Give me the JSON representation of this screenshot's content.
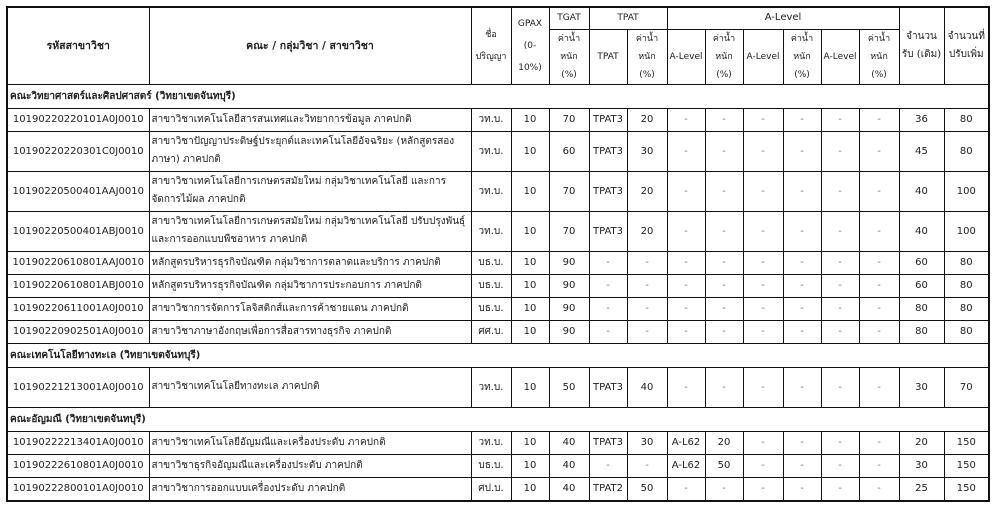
{
  "header": {
    "code": "รหัสสาขาวิชา",
    "program": "คณะ / กลุ่มวิชา / สาขาวิชา",
    "degree": "ชื่อ ปริญญา",
    "gpax": "GPAX (0-10%)",
    "tgat": "TGAT",
    "tpat": "TPAT",
    "alevel": "A-Level",
    "weight": "ค่าน้ำหนัก (%)",
    "tpat_sub": "TPAT",
    "alevel_sub": "A-Level",
    "seats_orig": "จำนวน รับ (เดิม)",
    "seats_added": "จำนวนที่ ปรับเพิ่ม"
  },
  "groups": [
    {
      "faculty": "คณะวิทยาศาสตร์และศิลปศาสตร์  (วิทยาเขตจันทบุรี)",
      "rows": [
        {
          "code": "10190220220101A0J0010",
          "name": "สาขาวิชาเทคโนโลยีสารสนเทศและวิทยาการข้อมูล ภาคปกติ",
          "degree": "วท.บ.",
          "gpax": "10",
          "tgat": "70",
          "tpat": "TPAT3",
          "tpat_w": "20",
          "a1": "-",
          "a1w": "-",
          "a2": "-",
          "a2w": "-",
          "a3": "-",
          "a3w": "-",
          "orig": "36",
          "added": "80"
        },
        {
          "code": "10190220220301C0J0010",
          "name": "สาขาวิชาปัญญาประดิษฐ์ประยุกต์และเทคโนโลยีอัจฉริยะ (หลักสูตรสองภาษา) ภาคปกติ",
          "degree": "วท.บ.",
          "gpax": "10",
          "tgat": "60",
          "tpat": "TPAT3",
          "tpat_w": "30",
          "a1": "-",
          "a1w": "-",
          "a2": "-",
          "a2w": "-",
          "a3": "-",
          "a3w": "-",
          "orig": "45",
          "added": "80"
        },
        {
          "code": "10190220500401AAJ0010",
          "name": "สาขาวิชาเทคโนโลยีการเกษตรสมัยใหม่ กลุ่มวิชาเทคโนโลยี และการจัดการไม้ผล ภาคปกติ",
          "degree": "วท.บ.",
          "gpax": "10",
          "tgat": "70",
          "tpat": "TPAT3",
          "tpat_w": "20",
          "a1": "-",
          "a1w": "-",
          "a2": "-",
          "a2w": "-",
          "a3": "-",
          "a3w": "-",
          "orig": "40",
          "added": "100"
        },
        {
          "code": "10190220500401ABJ0010",
          "name": "สาขาวิชาเทคโนโลยีการเกษตรสมัยใหม่ กลุ่มวิชาเทคโนโลยี ปรับปรุงพันธุ์และการออกแบบพืชอาหาร ภาคปกติ",
          "degree": "วท.บ.",
          "gpax": "10",
          "tgat": "70",
          "tpat": "TPAT3",
          "tpat_w": "20",
          "a1": "-",
          "a1w": "-",
          "a2": "-",
          "a2w": "-",
          "a3": "-",
          "a3w": "-",
          "orig": "40",
          "added": "100"
        },
        {
          "code": "10190220610801AAJ0010",
          "name": "หลักสูตรบริหารธุรกิจบัณฑิต กลุ่มวิชาการตลาดและบริการ ภาคปกติ",
          "degree": "บธ.บ.",
          "gpax": "10",
          "tgat": "90",
          "tpat": "-",
          "tpat_w": "-",
          "a1": "-",
          "a1w": "-",
          "a2": "-",
          "a2w": "-",
          "a3": "-",
          "a3w": "-",
          "orig": "60",
          "added": "80"
        },
        {
          "code": "10190220610801ABJ0010",
          "name": "หลักสูตรบริหารธุรกิจบัณฑิต กลุ่มวิชาการประกอบการ ภาคปกติ",
          "degree": "บธ.บ.",
          "gpax": "10",
          "tgat": "90",
          "tpat": "-",
          "tpat_w": "-",
          "a1": "-",
          "a1w": "-",
          "a2": "-",
          "a2w": "-",
          "a3": "-",
          "a3w": "-",
          "orig": "60",
          "added": "80"
        },
        {
          "code": "10190220611001A0J0010",
          "name": "สาขาวิชาการจัดการโลจิสติกส์และการค้าชายแดน ภาคปกติ",
          "degree": "บธ.บ.",
          "gpax": "10",
          "tgat": "90",
          "tpat": "-",
          "tpat_w": "-",
          "a1": "-",
          "a1w": "-",
          "a2": "-",
          "a2w": "-",
          "a3": "-",
          "a3w": "-",
          "orig": "80",
          "added": "80"
        },
        {
          "code": "10190220902501A0J0010",
          "name": "สาขาวิชาภาษาอังกฤษเพื่อการสื่อสารทางธุรกิจ ภาคปกติ",
          "degree": "ศศ.บ.",
          "gpax": "10",
          "tgat": "90",
          "tpat": "-",
          "tpat_w": "-",
          "a1": "-",
          "a1w": "-",
          "a2": "-",
          "a2w": "-",
          "a3": "-",
          "a3w": "-",
          "orig": "80",
          "added": "80"
        }
      ]
    },
    {
      "faculty": "คณะเทคโนโลยีทางทะเล (วิทยาเขตจันทบุรี)",
      "rows": [
        {
          "code": "10190221213001A0J0010",
          "name": "สาขาวิชาเทคโนโลยีทางทะเล ภาคปกติ",
          "degree": "วท.บ.",
          "gpax": "10",
          "tgat": "50",
          "tpat": "TPAT3",
          "tpat_w": "40",
          "a1": "-",
          "a1w": "-",
          "a2": "-",
          "a2w": "-",
          "a3": "-",
          "a3w": "-",
          "orig": "30",
          "added": "70",
          "tall": true
        }
      ]
    },
    {
      "faculty": "คณะอัญมณี (วิทยาเขตจันทบุรี)",
      "rows": [
        {
          "code": "10190222213401A0J0010",
          "name": "สาขาวิชาเทคโนโลยีอัญมณีและเครื่องประดับ ภาคปกติ",
          "degree": "วท.บ.",
          "gpax": "10",
          "tgat": "40",
          "tpat": "TPAT3",
          "tpat_w": "30",
          "a1": "A-L62",
          "a1w": "20",
          "a2": "-",
          "a2w": "-",
          "a3": "-",
          "a3w": "-",
          "orig": "20",
          "added": "150"
        },
        {
          "code": "10190222610801A0J0010",
          "name": "สาขาวิชาธุรกิจอัญมณีและเครื่องประดับ ภาคปกติ",
          "degree": "บธ.บ.",
          "gpax": "10",
          "tgat": "40",
          "tpat": "-",
          "tpat_w": "-",
          "a1": "A-L62",
          "a1w": "50",
          "a2": "-",
          "a2w": "-",
          "a3": "-",
          "a3w": "-",
          "orig": "30",
          "added": "150"
        },
        {
          "code": "10190222800101A0J0010",
          "name": "สาขาวิชาการออกแบบเครื่องประดับ ภาคปกติ",
          "degree": "ศป.บ.",
          "gpax": "10",
          "tgat": "40",
          "tpat": "TPAT2",
          "tpat_w": "50",
          "a1": "-",
          "a1w": "-",
          "a2": "-",
          "a2w": "-",
          "a3": "-",
          "a3w": "-",
          "orig": "25",
          "added": "150"
        }
      ]
    }
  ]
}
